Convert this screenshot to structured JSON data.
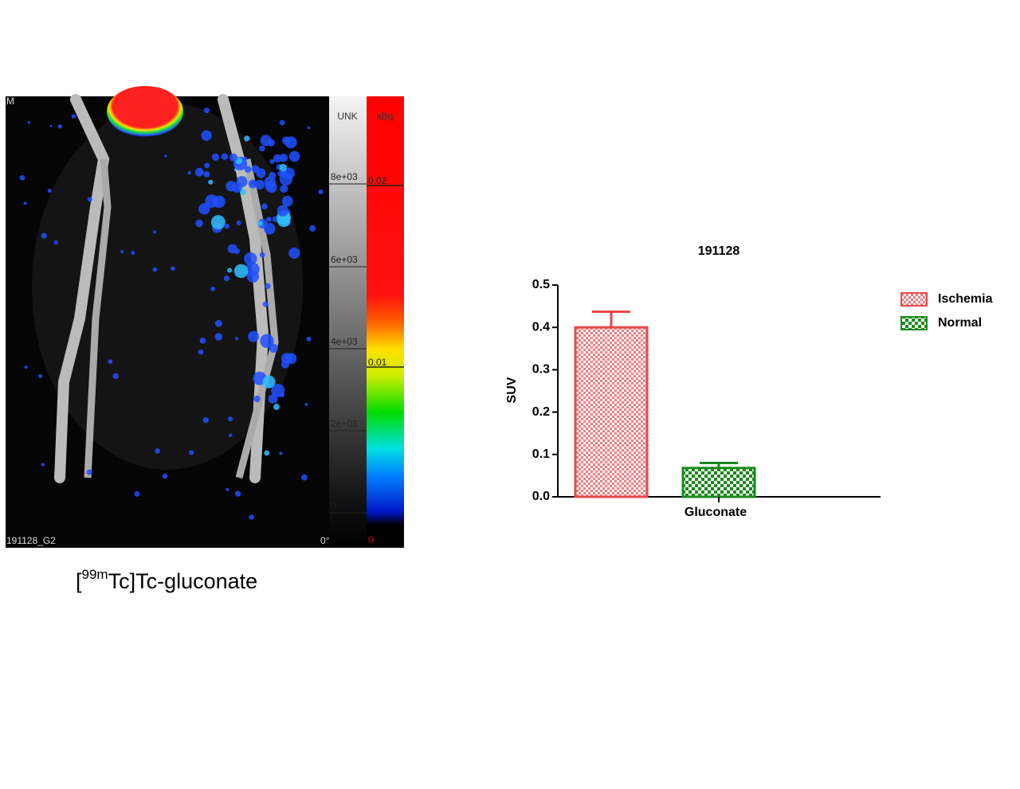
{
  "image_panel": {
    "corner_label": "M",
    "id_label": "191128_G2",
    "angle_label": "0°",
    "gray_unit": "UNK",
    "color_unit": "kBq",
    "gray_labels": [
      "8e+03",
      "6e+03",
      "4e+03",
      "2e+03",
      "0"
    ],
    "color_labels": [
      "0.02",
      "0.01",
      "0"
    ]
  },
  "caption": {
    "open": "[",
    "superscript": "99m",
    "text": "Tc]Tc-gluconate"
  },
  "chart_data": {
    "type": "bar",
    "title": "191128",
    "y_label": "SUV",
    "categories": [
      "Gluconate"
    ],
    "series": [
      {
        "name": "Ischemia",
        "color": "#e8484c",
        "values": [
          0.4
        ],
        "errors": [
          0.037
        ]
      },
      {
        "name": "Normal",
        "color": "#1a8a1a",
        "values": [
          0.068
        ],
        "errors": [
          0.012
        ]
      }
    ],
    "ylim": [
      0,
      0.5
    ],
    "yticks": [
      {
        "value": 0,
        "label": "0.0"
      },
      0.1,
      0.2,
      0.3,
      0.4,
      0.5
    ],
    "legend": "right"
  }
}
